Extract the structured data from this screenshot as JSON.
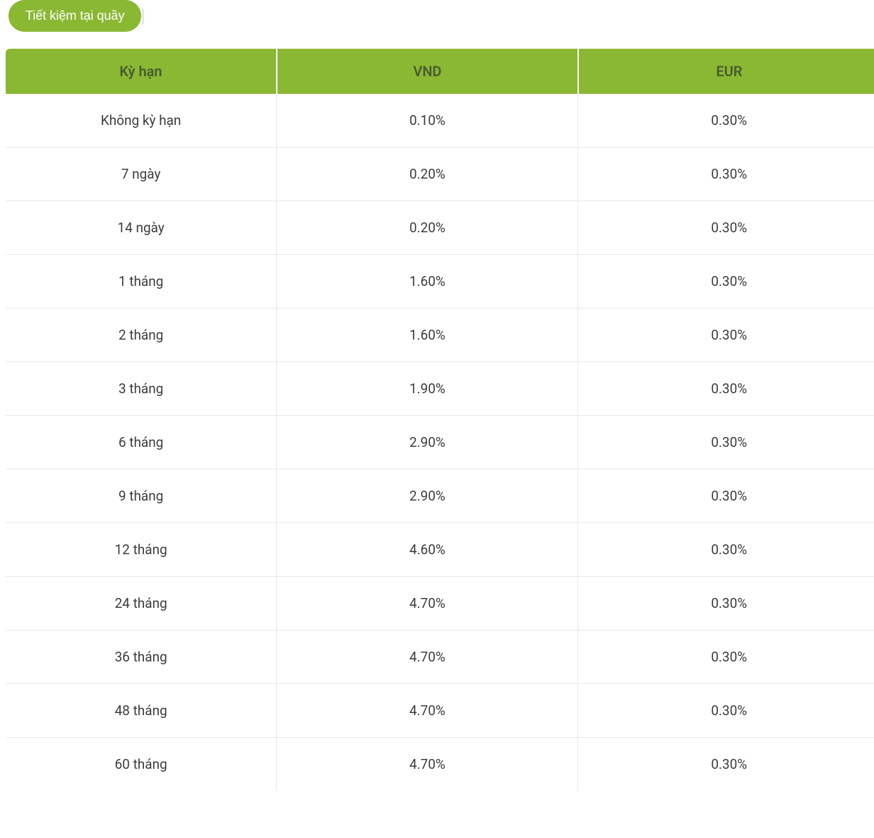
{
  "tab": {
    "label": "Tiết kiệm tại quầy"
  },
  "table": {
    "columns": [
      {
        "label": "Kỳ hạn"
      },
      {
        "label": "VND"
      },
      {
        "label": "EUR"
      }
    ],
    "rows": [
      {
        "term": "Không kỳ hạn",
        "vnd": "0.10%",
        "eur": "0.30%"
      },
      {
        "term": "7 ngày",
        "vnd": "0.20%",
        "eur": "0.30%"
      },
      {
        "term": "14 ngày",
        "vnd": "0.20%",
        "eur": "0.30%"
      },
      {
        "term": "1 tháng",
        "vnd": "1.60%",
        "eur": "0.30%"
      },
      {
        "term": "2 tháng",
        "vnd": "1.60%",
        "eur": "0.30%"
      },
      {
        "term": "3 tháng",
        "vnd": "1.90%",
        "eur": "0.30%"
      },
      {
        "term": "6 tháng",
        "vnd": "2.90%",
        "eur": "0.30%"
      },
      {
        "term": "9 tháng",
        "vnd": "2.90%",
        "eur": "0.30%"
      },
      {
        "term": "12 tháng",
        "vnd": "4.60%",
        "eur": "0.30%"
      },
      {
        "term": "24 tháng",
        "vnd": "4.70%",
        "eur": "0.30%"
      },
      {
        "term": "36 tháng",
        "vnd": "4.70%",
        "eur": "0.30%"
      },
      {
        "term": "48 tháng",
        "vnd": "4.70%",
        "eur": "0.30%"
      },
      {
        "term": "60 tháng",
        "vnd": "4.70%",
        "eur": "0.30%"
      }
    ],
    "styles": {
      "header_bg": "#8ab833",
      "header_text_color": "#4a5a30",
      "body_text_color": "#3c3c3c",
      "border_color": "#e8e8e8",
      "header_font_size": 20,
      "body_font_size": 19
    }
  }
}
